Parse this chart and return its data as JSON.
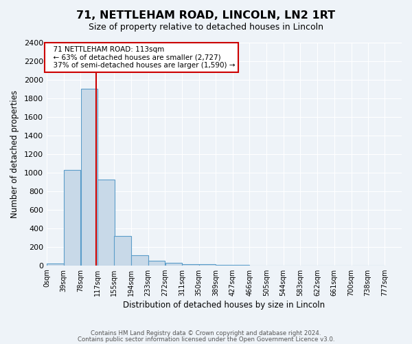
{
  "title": "71, NETTLEHAM ROAD, LINCOLN, LN2 1RT",
  "subtitle": "Size of property relative to detached houses in Lincoln",
  "xlabel": "Distribution of detached houses by size in Lincoln",
  "ylabel": "Number of detached properties",
  "bin_starts": [
    0,
    39,
    78,
    117,
    155,
    194,
    233,
    272,
    311,
    350,
    389,
    427,
    466,
    505,
    544,
    583,
    622,
    661,
    700,
    738
  ],
  "bin_heights": [
    20,
    1025,
    1900,
    920,
    315,
    110,
    50,
    30,
    15,
    10,
    5,
    2,
    1,
    0,
    0,
    0,
    0,
    0,
    0,
    0
  ],
  "bin_width": 39,
  "bar_color": "#c8d9e8",
  "bar_edge_color": "#5b9dc9",
  "property_size": 113,
  "vline_color": "#cc0000",
  "annotation_title": "71 NETTLEHAM ROAD: 113sqm",
  "annotation_line1": "← 63% of detached houses are smaller (2,727)",
  "annotation_line2": "37% of semi-detached houses are larger (1,590) →",
  "annotation_box_facecolor": "#ffffff",
  "annotation_box_edgecolor": "#cc0000",
  "background_color": "#eef3f8",
  "grid_color": "#ffffff",
  "footer_line1": "Contains HM Land Registry data © Crown copyright and database right 2024.",
  "footer_line2": "Contains public sector information licensed under the Open Government Licence v3.0.",
  "ylim": [
    0,
    2400
  ],
  "xlim": [
    0,
    816
  ],
  "tick_positions": [
    0,
    39,
    78,
    117,
    155,
    194,
    233,
    272,
    311,
    350,
    389,
    427,
    466,
    505,
    544,
    583,
    622,
    661,
    700,
    738,
    777
  ],
  "tick_labels": [
    "0sqm",
    "39sqm",
    "78sqm",
    "117sqm",
    "155sqm",
    "194sqm",
    "233sqm",
    "272sqm",
    "311sqm",
    "350sqm",
    "389sqm",
    "427sqm",
    "466sqm",
    "505sqm",
    "544sqm",
    "583sqm",
    "622sqm",
    "661sqm",
    "700sqm",
    "738sqm",
    "777sqm"
  ],
  "ytick_positions": [
    0,
    200,
    400,
    600,
    800,
    1000,
    1200,
    1400,
    1600,
    1800,
    2000,
    2200,
    2400
  ],
  "ytick_labels": [
    "0",
    "200",
    "400",
    "600",
    "800",
    "1000",
    "1200",
    "1400",
    "1600",
    "1800",
    "2000",
    "2200",
    "2400"
  ]
}
